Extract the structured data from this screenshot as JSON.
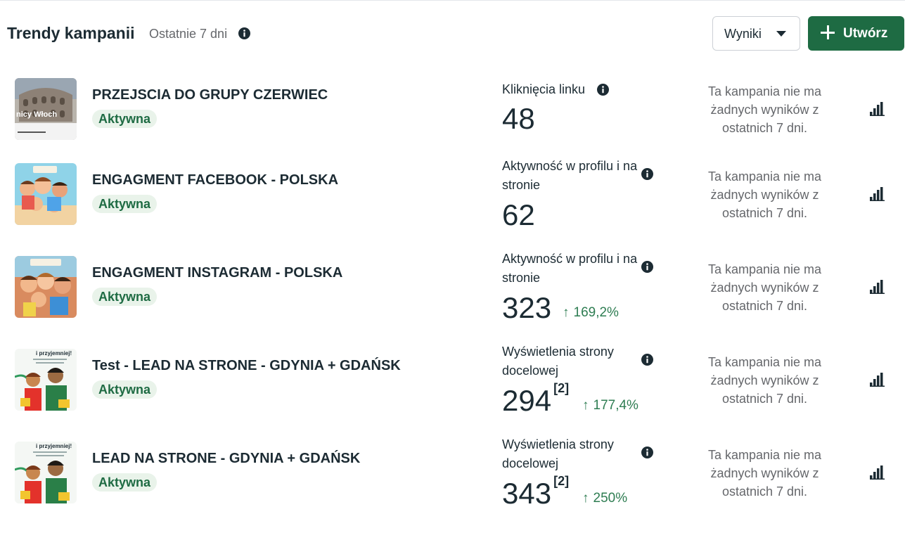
{
  "header": {
    "title": "Trendy kampanii",
    "subtitle": "Ostatnie 7 dni",
    "results_dropdown": "Wyniki",
    "create_button": "Utwórz"
  },
  "colors": {
    "accent": "#1e6b43",
    "badge_bg": "#e9f3ea",
    "muted": "#65676b",
    "text": "#1c2b33"
  },
  "campaigns": [
    {
      "name": "PRZEJSCIA DO GRUPY CZERWIEC",
      "status": "Aktywna",
      "metric_label": "Kliknięcia linku",
      "metric_value": "48",
      "footnote": "",
      "delta": "",
      "no_results": "Ta kampania nie ma żadnych wyników z ostatnich 7 dni.",
      "thumb_text": "nicy Włoch"
    },
    {
      "name": "ENGAGMENT FACEBOOK - POLSKA",
      "status": "Aktywna",
      "metric_label": "Aktywność w profilu i na stronie",
      "metric_value": "62",
      "footnote": "",
      "delta": "",
      "no_results": "Ta kampania nie ma żadnych wyników z ostatnich 7 dni.",
      "thumb_text": ""
    },
    {
      "name": "ENGAGMENT INSTAGRAM - POLSKA",
      "status": "Aktywna",
      "metric_label": "Aktywność w profilu i na stronie",
      "metric_value": "323",
      "footnote": "",
      "delta": "169,2%",
      "no_results": "Ta kampania nie ma żadnych wyników z ostatnich 7 dni.",
      "thumb_text": ""
    },
    {
      "name": "Test - LEAD NA STRONE - GDYNIA + GDAŃSK",
      "status": "Aktywna",
      "metric_label": "Wyświetlenia strony docelowej",
      "metric_value": "294",
      "footnote": "[2]",
      "delta": "177,4%",
      "no_results": "Ta kampania nie ma żadnych wyników z ostatnich 7 dni.",
      "thumb_text": "i przyjemniej!"
    },
    {
      "name": "LEAD NA STRONE - GDYNIA + GDAŃSK",
      "status": "Aktywna",
      "metric_label": "Wyświetlenia strony docelowej",
      "metric_value": "343",
      "footnote": "[2]",
      "delta": "250%",
      "no_results": "Ta kampania nie ma żadnych wyników z ostatnich 7 dni.",
      "thumb_text": "i przyjemniej!"
    }
  ]
}
